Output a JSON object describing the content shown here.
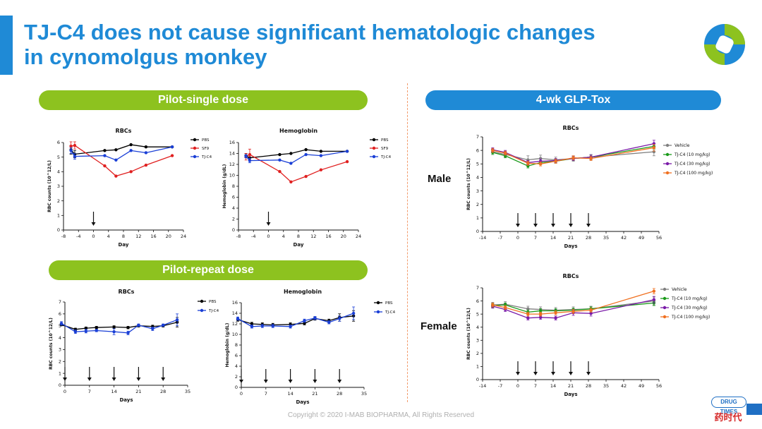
{
  "slide": {
    "title": "TJ-C4 does not cause significant hematologic changes in cynomolgus monkey",
    "title_line1": "TJ-C4 does not cause significant hematologic changes",
    "title_line2": "in cynomolgus monkey",
    "section_pilot_single": "Pilot-single dose",
    "section_pilot_repeat": "Pilot-repeat dose",
    "section_glp": "4-wk GLP-Tox",
    "male_label": "Male",
    "female_label": "Female",
    "copyright": "Copyright © 2020 I-MAB BIOPHARMA, All Rights Reserved",
    "badge_top": "DRUG TIMES",
    "badge_bottom": "药时代",
    "colors": {
      "accent": "#1f8ad6",
      "green": "#8dc21f",
      "divider": "#f29b6b"
    }
  },
  "chart_data": [
    {
      "id": "single-rbc",
      "type": "line",
      "title": "RBCs",
      "xlabel": "Day",
      "ylabel": "RBC counts (10^12/L)",
      "xlim": [
        -8,
        24
      ],
      "ylim": [
        0,
        6
      ],
      "xticks": [
        -8,
        -4,
        0,
        4,
        8,
        12,
        16,
        20,
        24
      ],
      "yticks": [
        0,
        1,
        2,
        3,
        4,
        5,
        6
      ],
      "xtick_labels": [
        "-8",
        "-4",
        "0",
        "4",
        "8",
        "12",
        "16",
        "20",
        "24"
      ],
      "ytick_labels": [
        "0",
        "1",
        "2",
        "3",
        "4",
        "5",
        "6"
      ],
      "dosing_arrows": [
        0
      ],
      "legend": "right",
      "series": [
        {
          "name": "PBS",
          "color": "#000000",
          "x": [
            -6,
            -5,
            3,
            6,
            10,
            14,
            21
          ],
          "y": [
            5.5,
            5.2,
            5.45,
            5.5,
            5.85,
            5.7,
            5.7
          ],
          "err": [
            0.3,
            0.25,
            0,
            0,
            0,
            0,
            0
          ]
        },
        {
          "name": "SF9",
          "color": "#e02020",
          "x": [
            -6,
            -5,
            3,
            6,
            10,
            14,
            21
          ],
          "y": [
            5.75,
            5.8,
            4.4,
            3.7,
            4.0,
            4.45,
            5.1
          ],
          "err": [
            0.3,
            0.25,
            0,
            0,
            0,
            0,
            0
          ]
        },
        {
          "name": "TJ-C4",
          "color": "#1a3fd6",
          "x": [
            -6,
            -5,
            3,
            6,
            10,
            14,
            21
          ],
          "y": [
            5.45,
            5.05,
            5.1,
            4.8,
            5.45,
            5.3,
            5.7
          ],
          "err": [
            0.2,
            0.2,
            0,
            0,
            0,
            0,
            0
          ]
        }
      ]
    },
    {
      "id": "single-hgb",
      "type": "line",
      "title": "Hemoglobin",
      "xlabel": "Day",
      "ylabel": "Hemoglobin (g/dL)",
      "xlim": [
        -8,
        24
      ],
      "ylim": [
        0,
        16
      ],
      "xticks": [
        -8,
        -4,
        0,
        4,
        8,
        12,
        16,
        20,
        24
      ],
      "yticks": [
        0,
        2,
        4,
        6,
        8,
        10,
        12,
        14,
        16
      ],
      "xtick_labels": [
        "-8",
        "-4",
        "0",
        "4",
        "8",
        "12",
        "16",
        "20",
        "24"
      ],
      "ytick_labels": [
        "0",
        "2",
        "4",
        "6",
        "8",
        "10",
        "12",
        "14",
        "16"
      ],
      "dosing_arrows": [
        0
      ],
      "legend": "right",
      "series": [
        {
          "name": "PBS",
          "color": "#000000",
          "x": [
            -6,
            -5,
            3,
            6,
            10,
            14,
            21
          ],
          "y": [
            13.6,
            13.2,
            13.8,
            14.0,
            14.7,
            14.4,
            14.4
          ],
          "err": [
            0.4,
            0.5,
            0,
            0,
            0,
            0,
            0
          ]
        },
        {
          "name": "SF9",
          "color": "#e02020",
          "x": [
            -6,
            -5,
            3,
            6,
            10,
            14,
            21
          ],
          "y": [
            13.4,
            13.8,
            10.7,
            8.8,
            9.8,
            11.0,
            12.5
          ],
          "err": [
            0.6,
            1.0,
            0,
            0,
            0,
            0,
            0
          ]
        },
        {
          "name": "TJ-C4",
          "color": "#1a3fd6",
          "x": [
            -6,
            -5,
            3,
            6,
            10,
            14,
            21
          ],
          "y": [
            13.5,
            12.7,
            12.8,
            12.2,
            13.8,
            13.6,
            14.4
          ],
          "err": [
            0.3,
            0.4,
            0,
            0,
            0,
            0,
            0
          ]
        }
      ]
    },
    {
      "id": "repeat-rbc",
      "type": "line",
      "title": "RBCs",
      "xlabel": "Days",
      "ylabel": "RBC counts (10^12/L)",
      "xlim": [
        0,
        35
      ],
      "ylim": [
        0,
        7
      ],
      "xticks": [
        0,
        7,
        14,
        21,
        28,
        35
      ],
      "yticks": [
        0,
        1,
        2,
        3,
        4,
        5,
        6,
        7
      ],
      "xtick_labels": [
        "0",
        "7",
        "14",
        "21",
        "28",
        "35"
      ],
      "ytick_labels": [
        "0",
        "1",
        "2",
        "3",
        "4",
        "5",
        "6",
        "7"
      ],
      "dosing_arrows": [
        0,
        7,
        14,
        21,
        28
      ],
      "legend": "right",
      "series": [
        {
          "name": "PBS",
          "color": "#000000",
          "x": [
            -1,
            3,
            6,
            9,
            14,
            18,
            21,
            25,
            28,
            32
          ],
          "y": [
            5.1,
            4.7,
            4.8,
            4.85,
            4.9,
            4.85,
            5.0,
            4.95,
            5.0,
            5.3
          ],
          "err": [
            0.1,
            0.1,
            0.1,
            0.1,
            0.1,
            0.1,
            0.1,
            0.1,
            0.1,
            0.4
          ]
        },
        {
          "name": "TJ-C4",
          "color": "#1a3fd6",
          "x": [
            -1,
            3,
            6,
            9,
            14,
            18,
            21,
            25,
            28,
            32
          ],
          "y": [
            5.2,
            4.5,
            4.55,
            4.6,
            4.5,
            4.4,
            5.05,
            4.75,
            5.05,
            5.5
          ],
          "err": [
            0.15,
            0.15,
            0.15,
            0.1,
            0.25,
            0.15,
            0.1,
            0.15,
            0.1,
            0.5
          ]
        }
      ]
    },
    {
      "id": "repeat-hgb",
      "type": "line",
      "title": "Hemoglobin",
      "xlabel": "Days",
      "ylabel": "Hemoglobin (g/dL)",
      "xlim": [
        0,
        35
      ],
      "ylim": [
        0,
        16
      ],
      "xticks": [
        0,
        7,
        14,
        21,
        28,
        35
      ],
      "yticks": [
        0,
        2,
        4,
        6,
        8,
        10,
        12,
        14,
        16
      ],
      "xtick_labels": [
        "0",
        "7",
        "14",
        "21",
        "28",
        "35"
      ],
      "ytick_labels": [
        "0",
        "2",
        "4",
        "6",
        "8",
        "10",
        "12",
        "14",
        "16"
      ],
      "dosing_arrows": [
        0,
        7,
        14,
        21,
        28
      ],
      "legend": "right",
      "series": [
        {
          "name": "PBS",
          "color": "#000000",
          "x": [
            -1,
            3,
            6,
            9,
            14,
            18,
            21,
            25,
            28,
            32
          ],
          "y": [
            12.8,
            12.0,
            11.9,
            11.8,
            11.9,
            12.1,
            13.0,
            12.6,
            13.2,
            13.5
          ],
          "err": [
            0.3,
            0.3,
            0.3,
            0.3,
            0.3,
            0.3,
            0.3,
            0.3,
            0.7,
            1.0
          ]
        },
        {
          "name": "TJ-C4",
          "color": "#1a3fd6",
          "x": [
            -1,
            3,
            6,
            9,
            14,
            18,
            21,
            25,
            28,
            32
          ],
          "y": [
            13.0,
            11.5,
            11.6,
            11.6,
            11.5,
            12.6,
            13.1,
            12.3,
            13.0,
            14.0
          ],
          "err": [
            0.3,
            0.3,
            0.3,
            0.3,
            0.3,
            0.3,
            0.3,
            0.3,
            0.5,
            1.2
          ]
        }
      ]
    },
    {
      "id": "glp-male-rbc",
      "type": "line",
      "title": "RBCs",
      "xlabel": "Days",
      "ylabel": "RBC counts (10^12/L)",
      "xlim": [
        -14,
        56
      ],
      "ylim": [
        0,
        7
      ],
      "xticks": [
        -14,
        -7,
        0,
        7,
        14,
        21,
        28,
        35,
        42,
        49,
        56
      ],
      "yticks": [
        0,
        1,
        2,
        3,
        4,
        5,
        6,
        7
      ],
      "xtick_labels": [
        "-14",
        "-7",
        "0",
        "7",
        "14",
        "21",
        "28",
        "35",
        "42",
        "49",
        "56"
      ],
      "ytick_labels": [
        "0",
        "1",
        "2",
        "3",
        "4",
        "5",
        "6",
        "7"
      ],
      "dosing_arrows": [
        0,
        7,
        14,
        21,
        28
      ],
      "legend": "right",
      "series": [
        {
          "name": "Vehicle",
          "color": "#808080",
          "x": [
            -10,
            -5,
            4,
            9,
            15,
            22,
            29,
            54
          ],
          "y": [
            5.9,
            5.7,
            5.3,
            5.4,
            5.3,
            5.4,
            5.5,
            5.9
          ],
          "err": [
            0.2,
            0.2,
            0.3,
            0.25,
            0.2,
            0.2,
            0.2,
            0.3
          ]
        },
        {
          "name": "TJ-C4 (10 mg/kg)",
          "color": "#1a9a1a",
          "x": [
            -10,
            -5,
            4,
            9,
            15,
            22,
            29,
            54
          ],
          "y": [
            5.85,
            5.6,
            4.85,
            5.1,
            5.2,
            5.4,
            5.5,
            6.3
          ],
          "err": [
            0.15,
            0.15,
            0.15,
            0.15,
            0.15,
            0.15,
            0.15,
            0.2
          ]
        },
        {
          "name": "TJ-C4 (30 mg/kg)",
          "color": "#7a1aa8",
          "x": [
            -10,
            -5,
            4,
            9,
            15,
            22,
            29,
            54
          ],
          "y": [
            6.05,
            5.85,
            5.1,
            5.2,
            5.25,
            5.4,
            5.5,
            6.5
          ],
          "err": [
            0.15,
            0.15,
            0.15,
            0.15,
            0.15,
            0.15,
            0.15,
            0.25
          ]
        },
        {
          "name": "TJ-C4 (100 mg/kg)",
          "color": "#f07020",
          "x": [
            -10,
            -5,
            4,
            9,
            15,
            22,
            29,
            54
          ],
          "y": [
            6.0,
            5.8,
            5.05,
            5.0,
            5.2,
            5.45,
            5.4,
            6.2
          ],
          "err": [
            0.15,
            0.15,
            0.15,
            0.15,
            0.15,
            0.15,
            0.15,
            0.25
          ]
        }
      ]
    },
    {
      "id": "glp-female-rbc",
      "type": "line",
      "title": "RBCs",
      "xlabel": "Days",
      "ylabel": "RBC counts (10^12/L)",
      "xlim": [
        -14,
        56
      ],
      "ylim": [
        0,
        7
      ],
      "xticks": [
        -14,
        -7,
        0,
        7,
        14,
        21,
        28,
        35,
        42,
        49,
        56
      ],
      "yticks": [
        0,
        1,
        2,
        3,
        4,
        5,
        6,
        7
      ],
      "xtick_labels": [
        "-14",
        "-7",
        "0",
        "7",
        "14",
        "21",
        "28",
        "35",
        "42",
        "49",
        "56"
      ],
      "ytick_labels": [
        "0",
        "1",
        "2",
        "3",
        "4",
        "5",
        "6",
        "7"
      ],
      "dosing_arrows": [
        0,
        7,
        14,
        21,
        28
      ],
      "legend": "right",
      "series": [
        {
          "name": "Vehicle",
          "color": "#808080",
          "x": [
            -10,
            -5,
            4,
            9,
            15,
            22,
            29,
            54
          ],
          "y": [
            5.7,
            5.75,
            5.4,
            5.35,
            5.3,
            5.35,
            5.4,
            6.0
          ],
          "err": [
            0.2,
            0.2,
            0.2,
            0.2,
            0.2,
            0.2,
            0.2,
            0.3
          ]
        },
        {
          "name": "TJ-C4 (10 mg/kg)",
          "color": "#1a9a1a",
          "x": [
            -10,
            -5,
            4,
            9,
            15,
            22,
            29,
            54
          ],
          "y": [
            5.65,
            5.7,
            5.15,
            5.25,
            5.25,
            5.3,
            5.4,
            5.85
          ],
          "err": [
            0.15,
            0.15,
            0.15,
            0.15,
            0.15,
            0.15,
            0.15,
            0.2
          ]
        },
        {
          "name": "TJ-C4 (30 mg/kg)",
          "color": "#7a1aa8",
          "x": [
            -10,
            -5,
            4,
            9,
            15,
            22,
            29,
            54
          ],
          "y": [
            5.6,
            5.35,
            4.7,
            4.75,
            4.7,
            5.1,
            5.05,
            6.1
          ],
          "err": [
            0.15,
            0.15,
            0.15,
            0.15,
            0.15,
            0.2,
            0.2,
            0.25
          ]
        },
        {
          "name": "TJ-C4 (100 mg/kg)",
          "color": "#f07020",
          "x": [
            -10,
            -5,
            4,
            9,
            15,
            22,
            29,
            54
          ],
          "y": [
            5.7,
            5.5,
            5.0,
            5.0,
            5.1,
            5.2,
            5.3,
            6.75
          ],
          "err": [
            0.15,
            0.15,
            0.15,
            0.15,
            0.15,
            0.15,
            0.15,
            0.2
          ]
        }
      ]
    }
  ]
}
